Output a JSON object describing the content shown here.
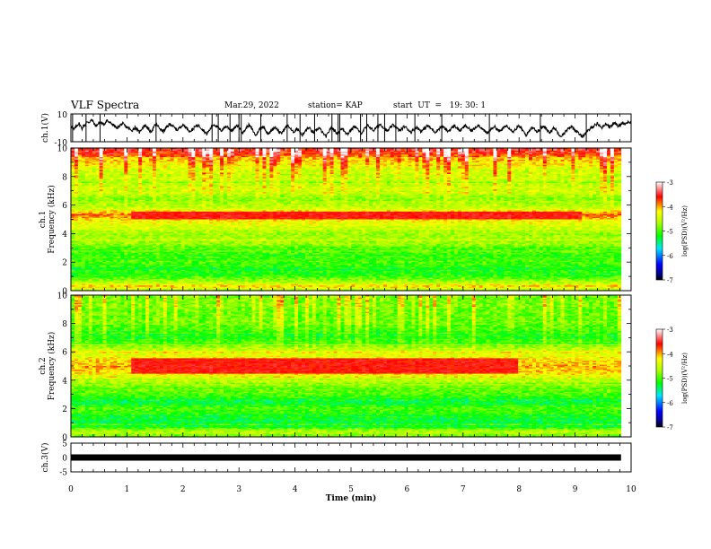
{
  "header": {
    "title": "VLF Spectra",
    "date": "Mar.29, 2022",
    "station": "station= KAP",
    "start": "start  UT  =   19: 30: 1"
  },
  "chart_data": [
    {
      "type": "line",
      "panel": "ch1-waveform",
      "ylabel": "ch.1(V)",
      "ylim": [
        -10,
        10
      ],
      "yticks": [
        "10",
        "-10"
      ],
      "xlim": [
        0,
        10
      ],
      "samples_per_min": 40,
      "y": [
        1.0,
        0.5,
        -1.5,
        0.0,
        1.5,
        2.5,
        3.0,
        1.0,
        -0.5,
        1.5,
        2.0,
        3.5,
        4.5,
        4.0,
        5.0,
        5.5,
        4.5,
        2.0,
        1.5,
        2.5,
        3.5,
        4.0,
        3.0,
        2.5,
        3.0,
        4.5,
        5.5,
        4.0,
        3.5,
        3.0,
        2.5,
        1.5,
        0.5,
        -0.5,
        1.0,
        1.5,
        2.5,
        3.0,
        2.0,
        1.0,
        0.5,
        0.0,
        -1.0,
        -2.0,
        -1.5,
        -0.5,
        0.5,
        -1.0,
        -2.5,
        -3.0,
        -1.5,
        0.0,
        1.0,
        2.0,
        1.0,
        -0.5,
        -2.0,
        -3.0,
        -1.5,
        0.5,
        1.5,
        2.5,
        1.5,
        0.0,
        -1.0,
        -2.0,
        -2.5,
        -1.5,
        0.0,
        1.0,
        2.0,
        3.0,
        2.0,
        1.0,
        0.0,
        -1.0,
        -1.5,
        -0.5,
        0.5,
        1.5,
        2.0,
        1.5,
        0.5,
        -0.5,
        -1.5,
        -2.5,
        -2.0,
        -1.0,
        0.0,
        1.0,
        1.5,
        2.0,
        1.0,
        0.0,
        -1.0,
        -2.0,
        -3.5,
        -4.5,
        -3.0,
        -1.5,
        0.0,
        1.5,
        2.5,
        2.0,
        1.0,
        0.0,
        -1.0,
        -2.0,
        -1.5,
        -0.5,
        0.5,
        1.0,
        0.5,
        -0.5,
        -1.5,
        -2.0,
        -1.0,
        0.0,
        1.0,
        1.5,
        0.5,
        -1.0,
        -2.5,
        -3.5,
        -2.0,
        -0.5,
        1.0,
        2.0,
        1.0,
        -0.5,
        -2.0,
        -4.0,
        -5.5,
        -4.0,
        -2.0,
        -0.5,
        0.5,
        1.0,
        0.0,
        -1.5,
        -3.0,
        -4.5,
        -3.5,
        -2.0,
        -1.0,
        0.0,
        0.5,
        -0.5,
        -2.0,
        -3.5,
        -4.0,
        -3.0,
        -1.5,
        0.0,
        1.0,
        1.5,
        0.5,
        -1.0,
        -2.5,
        -3.0,
        -2.0,
        -1.0,
        -0.5,
        -2.0,
        -4.0,
        -5.0,
        -4.5,
        -3.0,
        -1.5,
        -0.5,
        0.0,
        -1.0,
        -2.5,
        -3.5,
        -3.0,
        -2.0,
        -1.0,
        0.0,
        -1.0,
        -2.5,
        -4.0,
        -5.0,
        -6.5,
        -5.0,
        -3.0,
        -1.0,
        0.0,
        -0.5,
        -1.5,
        -3.0,
        -4.0,
        -3.5,
        -2.0,
        -1.0,
        -0.5,
        -1.5,
        -3.0,
        -4.5,
        -4.0,
        -2.5,
        -1.5,
        -0.5,
        0.5,
        1.0,
        0.0,
        -1.5,
        -3.0,
        -4.0,
        -3.0,
        -1.5,
        -0.5,
        0.5,
        1.5,
        1.0,
        0.0,
        -1.0,
        -2.0,
        -1.0,
        0.0,
        1.0,
        2.0,
        2.5,
        1.5,
        0.5,
        -0.5,
        -1.5,
        -2.5,
        -1.5,
        0.0,
        1.0,
        2.0,
        1.5,
        0.5,
        -0.5,
        -1.5,
        -2.0,
        -1.0,
        0.0,
        1.0,
        0.5,
        -0.5,
        -1.5,
        -2.5,
        -3.0,
        -2.0,
        -1.0,
        0.0,
        0.5,
        -0.5,
        -1.5,
        -2.5,
        -2.0,
        -1.0,
        0.0,
        1.0,
        1.5,
        0.5,
        -0.5,
        -1.0,
        -2.0,
        -3.0,
        -2.5,
        -1.5,
        -0.5,
        0.5,
        1.0,
        0.5,
        -0.5,
        -1.5,
        -2.5,
        -2.0,
        -1.0,
        0.0,
        1.0,
        1.5,
        0.5,
        -0.5,
        -1.5,
        -2.0,
        -1.0,
        0.0,
        1.0,
        1.5,
        0.5,
        -0.5,
        -1.5,
        -2.0,
        -1.5,
        -0.5,
        0.5,
        1.5,
        2.0,
        1.0,
        0.0,
        -1.0,
        -2.0,
        -3.0,
        -4.0,
        -3.0,
        -2.0,
        -1.0,
        0.0,
        1.0,
        0.5,
        -0.5,
        -1.5,
        -2.5,
        -2.0,
        -1.0,
        0.0,
        1.0,
        1.5,
        1.0,
        0.0,
        -1.0,
        -2.0,
        -2.5,
        -1.5,
        -0.5,
        0.5,
        1.0,
        0.5,
        -1.0,
        -2.5,
        -4.0,
        -5.5,
        -4.0,
        -2.5,
        -1.0,
        0.0,
        0.5,
        -0.5,
        -2.0,
        -3.0,
        -2.0,
        -1.0,
        0.0,
        1.0,
        0.5,
        -0.5,
        -1.5,
        -2.5,
        -3.0,
        -2.0,
        -1.0,
        0.0,
        -1.0,
        -2.5,
        -4.0,
        -5.0,
        -6.0,
        -5.0,
        -4.0,
        -3.0,
        -2.0,
        -1.0,
        0.0,
        1.0,
        0.5,
        -0.5,
        -1.5,
        -2.5,
        -3.5,
        -4.5,
        -5.5,
        -6.0,
        -5.5,
        -4.5,
        -3.5,
        -2.5,
        -1.5,
        -0.5,
        0.5,
        1.0,
        2.0,
        2.5,
        3.0,
        2.0,
        1.0,
        0.0,
        1.0,
        2.0,
        3.0,
        2.5,
        1.5,
        0.5,
        1.5,
        2.5,
        3.5,
        3.0,
        2.0,
        1.0,
        2.0,
        3.0,
        4.0,
        3.5,
        2.5,
        3.5,
        4.5,
        4.0
      ],
      "spikes_min": [
        0.03,
        0.27,
        0.52,
        1.52,
        2.52,
        2.63,
        2.84,
        3.0,
        3.04,
        3.39,
        3.86,
        4.09,
        4.35,
        4.66,
        4.77,
        4.8,
        5.17,
        5.28,
        5.48,
        5.6,
        5.8,
        6.14,
        6.62,
        7.47,
        8.38,
        9.2
      ]
    },
    {
      "type": "heatmap",
      "panel": "ch1-spectrogram",
      "ylabel": "Frequency (kHz)",
      "channel_label": "ch.1",
      "xlim": [
        0,
        10
      ],
      "ylim": [
        0,
        10
      ],
      "yticks": [
        "0",
        "2",
        "4",
        "6",
        "8",
        "10"
      ],
      "colorbar": {
        "label": "log(PSD)(V²/Hz)",
        "range": [
          -7,
          -3
        ],
        "ticks": [
          "-3",
          "-4",
          "-5",
          "-6",
          "-7"
        ]
      },
      "data_end_min": 9.82,
      "base_level_by_khz": [
        [
          0.0,
          -4.8
        ],
        [
          0.3,
          -4.0
        ],
        [
          0.6,
          -4.6
        ],
        [
          1.0,
          -5.0
        ],
        [
          1.5,
          -5.2
        ],
        [
          2.0,
          -5.0
        ],
        [
          2.5,
          -5.1
        ],
        [
          3.0,
          -4.9
        ],
        [
          3.5,
          -4.6
        ],
        [
          4.0,
          -4.7
        ],
        [
          4.5,
          -4.4
        ],
        [
          5.0,
          -4.2
        ],
        [
          5.3,
          -3.8
        ],
        [
          5.8,
          -4.5
        ],
        [
          6.5,
          -4.8
        ],
        [
          7.0,
          -4.5
        ],
        [
          8.0,
          -4.6
        ],
        [
          9.0,
          -4.3
        ],
        [
          9.6,
          -3.8
        ],
        [
          10.0,
          -3.5
        ]
      ],
      "bright_band": {
        "khz": [
          5.0,
          5.5
        ],
        "time_min": [
          1.05,
          9.1
        ],
        "level": -3.6
      }
    },
    {
      "type": "heatmap",
      "panel": "ch2-spectrogram",
      "ylabel": "Frequency (kHz)",
      "channel_label": "ch.2",
      "xlim": [
        0,
        10
      ],
      "ylim": [
        0,
        10
      ],
      "yticks": [
        "0",
        "2",
        "4",
        "6",
        "8",
        "10"
      ],
      "colorbar": {
        "label": "log(PSD)(V²/Hz)",
        "range": [
          -7,
          -3
        ],
        "ticks": [
          "-3",
          "-4",
          "-5",
          "-6",
          "-7"
        ]
      },
      "data_end_min": 9.82,
      "base_level_by_khz": [
        [
          0.0,
          -5.0
        ],
        [
          0.3,
          -4.5
        ],
        [
          0.8,
          -5.3
        ],
        [
          1.5,
          -5.2
        ],
        [
          2.0,
          -5.0
        ],
        [
          2.5,
          -5.3
        ],
        [
          3.0,
          -5.0
        ],
        [
          3.5,
          -4.8
        ],
        [
          4.0,
          -4.6
        ],
        [
          4.5,
          -4.1
        ],
        [
          5.0,
          -4.0
        ],
        [
          5.5,
          -4.2
        ],
        [
          6.0,
          -4.5
        ],
        [
          6.5,
          -4.9
        ],
        [
          7.0,
          -5.2
        ],
        [
          8.0,
          -5.0
        ],
        [
          9.0,
          -4.9
        ],
        [
          10.0,
          -4.9
        ]
      ],
      "bright_band": {
        "khz": [
          4.5,
          5.5
        ],
        "time_min": [
          1.05,
          8.0
        ],
        "level": -3.6
      }
    },
    {
      "type": "line",
      "panel": "ch3-waveform",
      "ylabel": "ch.3(V)",
      "ylim": [
        -5,
        5
      ],
      "yticks": [
        "5",
        "0",
        "-5"
      ],
      "xlim": [
        0,
        10
      ],
      "x": [
        0,
        9.82
      ],
      "y": [
        0,
        0
      ],
      "xlabel": "Time  (min)",
      "xticks": [
        "0",
        "1",
        "2",
        "3",
        "4",
        "5",
        "6",
        "7",
        "8",
        "9",
        "10"
      ]
    }
  ]
}
